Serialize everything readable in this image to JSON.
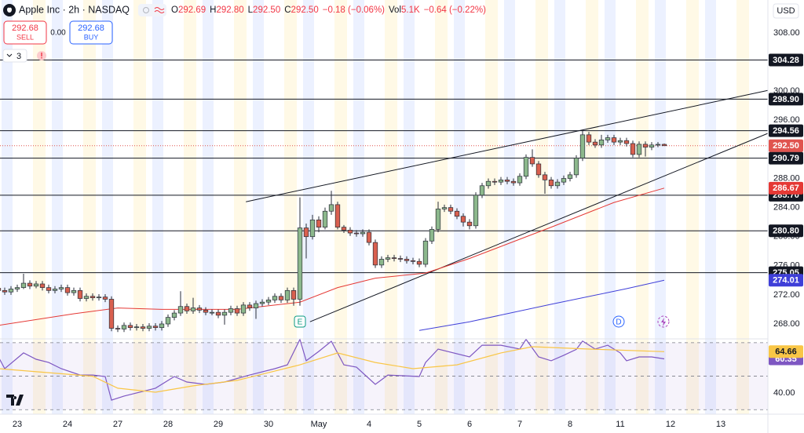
{
  "toolbar": {
    "symbol": "Apple Inc · 2h · NASDAQ",
    "ohlc_labels": [
      "O",
      "H",
      "L",
      "C"
    ],
    "ohlc_values": [
      "292.69",
      "292.80",
      "292.50",
      "292.50"
    ],
    "change": "−0.18 (−0.06%)",
    "volume_label": "Vol",
    "volume": "5.1K",
    "ext_change": "−0.64 (−0.22%)",
    "sell_price": "292.68",
    "sell": "SELL",
    "spread": "0.00",
    "buy_price": "292.68",
    "buy": "BUY",
    "indicators": "3",
    "currency": "USD"
  },
  "chart_data": [
    {
      "type": "candlestick",
      "categories": [
        null,
        null,
        null,
        "23",
        null,
        null,
        null,
        null,
        null,
        null,
        null,
        "24",
        null,
        null,
        null,
        null,
        null,
        null,
        null,
        "27",
        null,
        null,
        null,
        null,
        null,
        null,
        null,
        "28",
        null,
        null,
        null,
        null,
        null,
        null,
        null,
        "29",
        null,
        null,
        null,
        null,
        null,
        null,
        null,
        "30",
        null,
        null,
        null,
        null,
        null,
        null,
        null,
        "May",
        null,
        null,
        null,
        null,
        null,
        null,
        null,
        "4",
        null,
        null,
        null,
        null,
        null,
        null,
        null,
        "5",
        null,
        null,
        null,
        null,
        null,
        null,
        null,
        "6",
        null,
        null,
        null,
        null,
        null,
        null,
        null,
        "7",
        null,
        null,
        null,
        null,
        null,
        null,
        null,
        "8",
        null,
        null,
        null,
        null,
        null,
        null,
        null,
        "11",
        null,
        null,
        null,
        null,
        null,
        null,
        null,
        "12",
        null,
        null,
        null,
        null,
        null,
        null,
        null,
        "13",
        null,
        null,
        null,
        null,
        null,
        null
      ],
      "open": [
        272.9,
        272.6,
        272.4,
        272.8,
        273.0,
        273.6,
        273.2,
        273.5,
        273.0,
        272.6,
        272.8,
        273.0,
        272.3,
        272.6,
        271.5,
        271.8,
        271.6,
        271.7,
        271.4,
        267.4,
        267.3,
        267.8,
        267.5,
        267.6,
        267.4,
        267.7,
        267.5,
        268.0,
        268.9,
        269.5,
        270.4,
        269.8,
        270.2,
        269.9,
        269.6,
        269.6,
        269.2,
        269.6,
        270.1,
        269.5,
        270.6,
        270.2,
        270.8,
        271.0,
        271.3,
        271.8,
        271.3,
        272.6,
        271.4,
        281.2,
        280.0,
        282.3,
        281.3,
        283.5,
        284.4,
        281.3,
        280.9,
        280.5,
        280.4,
        280.6,
        279.2,
        276.1,
        276.9,
        277.1,
        277.0,
        276.9,
        276.7,
        276.6,
        276.2,
        279.4,
        281.0,
        283.8,
        284.0,
        283.5,
        282.8,
        282.0,
        281.5,
        285.7,
        287.0,
        287.6,
        287.5,
        287.8,
        287.6,
        287.4,
        288.3,
        290.9,
        290.0,
        288.5,
        287.8,
        287.0,
        287.5,
        288.0,
        288.5,
        290.8,
        294.0,
        293.0,
        292.6,
        293.3,
        293.6,
        293.0,
        293.2,
        292.8,
        291.3,
        292.7,
        292.3,
        292.6,
        292.69,
        null,
        null,
        null,
        null,
        null,
        null,
        null,
        null,
        null,
        null,
        null,
        null,
        null,
        null,
        null
      ],
      "high": [
        273.2,
        273.0,
        273.2,
        273.4,
        274.9,
        274.0,
        273.9,
        273.9,
        273.4,
        273.2,
        273.4,
        273.4,
        273.0,
        273.0,
        272.2,
        272.2,
        272.1,
        272.1,
        271.8,
        267.8,
        268.2,
        268.2,
        268.0,
        268.0,
        268.1,
        268.1,
        268.4,
        269.3,
        269.9,
        272.5,
        270.8,
        271.6,
        270.6,
        270.3,
        270.0,
        270.0,
        270.0,
        270.5,
        270.5,
        271.0,
        271.0,
        271.2,
        271.4,
        271.7,
        272.2,
        272.2,
        273.0,
        273.0,
        285.4,
        281.8,
        283.0,
        282.8,
        284.0,
        286.3,
        284.8,
        281.6,
        281.3,
        280.9,
        281.0,
        281.0,
        279.6,
        277.3,
        277.5,
        277.5,
        277.4,
        277.3,
        277.1,
        277.0,
        279.8,
        281.4,
        284.8,
        284.4,
        284.4,
        283.9,
        283.2,
        282.4,
        286.1,
        287.4,
        288.0,
        288.0,
        288.2,
        288.2,
        288.0,
        288.7,
        291.3,
        292.0,
        290.4,
        288.9,
        288.2,
        287.9,
        288.4,
        288.9,
        291.2,
        294.6,
        294.4,
        293.4,
        294.0,
        294.0,
        294.0,
        293.6,
        293.6,
        293.2,
        293.1,
        293.1,
        293.0,
        293.0,
        292.8,
        null,
        null,
        null,
        null,
        null,
        null,
        null,
        null,
        null,
        null,
        null,
        null,
        null,
        null,
        null
      ],
      "low": [
        272.2,
        272.0,
        272.0,
        272.4,
        272.8,
        272.8,
        272.9,
        272.6,
        272.2,
        272.2,
        272.4,
        271.9,
        271.9,
        271.1,
        271.1,
        271.2,
        271.2,
        271.0,
        267.0,
        266.9,
        266.9,
        267.1,
        267.1,
        267.0,
        267.0,
        267.1,
        267.1,
        267.6,
        268.5,
        269.1,
        269.4,
        269.4,
        269.5,
        269.2,
        269.2,
        268.8,
        267.9,
        269.2,
        269.1,
        269.1,
        269.8,
        268.7,
        270.4,
        270.6,
        270.9,
        270.9,
        270.9,
        270.5,
        270.5,
        277.0,
        279.6,
        280.6,
        281.0,
        283.0,
        281.0,
        280.5,
        280.1,
        280.0,
        280.0,
        278.8,
        275.7,
        275.7,
        276.5,
        276.6,
        276.5,
        276.3,
        276.2,
        275.8,
        275.8,
        279.0,
        280.6,
        283.4,
        283.1,
        282.4,
        281.4,
        281.0,
        281.1,
        285.3,
        286.6,
        287.1,
        287.1,
        287.2,
        287.0,
        287.0,
        287.9,
        289.6,
        288.1,
        285.9,
        286.6,
        286.6,
        287.1,
        287.6,
        288.1,
        290.4,
        292.6,
        292.2,
        292.2,
        292.9,
        292.6,
        292.6,
        292.4,
        290.9,
        290.9,
        291.0,
        291.9,
        292.3,
        292.5,
        null,
        null,
        null,
        null,
        null,
        null,
        null,
        null,
        null,
        null,
        null,
        null,
        null,
        null,
        null
      ],
      "close": [
        272.6,
        272.4,
        272.8,
        273.0,
        273.6,
        273.2,
        273.5,
        273.0,
        272.6,
        272.8,
        273.0,
        272.3,
        272.6,
        271.5,
        271.8,
        271.6,
        271.7,
        271.4,
        267.4,
        267.3,
        267.8,
        267.5,
        267.6,
        267.4,
        267.7,
        267.5,
        268.0,
        268.9,
        269.5,
        270.4,
        269.8,
        270.2,
        269.9,
        269.6,
        269.6,
        269.2,
        269.6,
        270.1,
        269.5,
        270.6,
        270.2,
        270.8,
        271.0,
        271.3,
        271.8,
        271.3,
        272.6,
        271.4,
        281.2,
        280.0,
        282.3,
        281.3,
        283.5,
        284.4,
        281.3,
        280.9,
        280.5,
        280.4,
        280.6,
        279.2,
        276.1,
        276.9,
        277.1,
        277.0,
        276.9,
        276.7,
        276.6,
        276.2,
        279.4,
        281.0,
        283.8,
        284.0,
        283.5,
        282.8,
        282.0,
        281.5,
        285.7,
        287.0,
        287.6,
        287.5,
        287.8,
        287.6,
        287.4,
        288.3,
        290.9,
        290.0,
        288.5,
        287.8,
        287.0,
        287.5,
        288.0,
        288.5,
        290.8,
        294.0,
        293.0,
        292.6,
        293.3,
        293.6,
        293.0,
        293.2,
        292.8,
        291.3,
        292.7,
        292.3,
        292.6,
        292.69,
        292.5,
        null,
        null,
        null,
        null,
        null,
        null,
        null,
        null,
        null,
        null,
        null,
        null,
        null,
        null,
        null
      ],
      "up_color": "#8cb88c",
      "down_color": "#d9604f",
      "border_color": "#2a2e39",
      "ylim": [
        265.95,
        312.53
      ],
      "yticks": [
        {
          "value": 308,
          "label": "308.00"
        },
        {
          "value": 300,
          "label": "300.00"
        },
        {
          "value": 296,
          "label": "296.00"
        },
        {
          "value": 288,
          "label": "288.00"
        },
        {
          "value": 284,
          "label": "284.00"
        },
        {
          "value": 280,
          "label": "280.00"
        },
        {
          "value": 276,
          "label": "276.00"
        },
        {
          "value": 272,
          "label": "272.00"
        },
        {
          "value": 268,
          "label": "268.00"
        }
      ],
      "grid": false,
      "levels": [
        {
          "value": 304.28,
          "label": "304.28"
        },
        {
          "value": 298.9,
          "label": "298.90"
        },
        {
          "value": 294.56,
          "label": "294.56"
        },
        {
          "value": 290.79,
          "label": "290.79"
        },
        {
          "value": 285.7,
          "label": "285.70"
        },
        {
          "value": 280.8,
          "label": "280.80"
        },
        {
          "value": 275.05,
          "label": "275.05"
        }
      ],
      "level_color": "#131722",
      "last_price": {
        "value": 292.5,
        "label": "292.50"
      },
      "last_price_color": "#e0544f",
      "moving_averages": [
        {
          "color": "#e53935",
          "x": [
            0,
            12,
            19,
            26,
            38,
            48,
            54,
            60,
            68,
            75,
            88,
            98,
            106
          ],
          "values": [
            267.8,
            269.4,
            270.2,
            270.0,
            270.0,
            271.0,
            273.0,
            274.3,
            275.0,
            277.0,
            281.3,
            284.7,
            286.67
          ]
        },
        {
          "color": "#3f3fd8",
          "x": [
            67,
            75,
            88,
            100,
            106
          ],
          "values": [
            267.1,
            268.3,
            270.7,
            272.85,
            274.01
          ]
        }
      ],
      "trendlines": [
        {
          "x": [
            39.4,
            122.5
          ],
          "values": [
            284.8,
            300.1
          ]
        },
        {
          "x": [
            49.6,
            122.5
          ],
          "values": [
            268.3,
            294.2
          ]
        }
      ],
      "events": [
        {
          "label": "E",
          "x": 48,
          "color": "#089981"
        },
        {
          "label": "D",
          "x": 98.75,
          "color": "#2962ff"
        }
      ]
    },
    {
      "type": "line",
      "ylim": [
        28.7,
        72.3
      ],
      "yticks": [
        {
          "value": 40,
          "label": "40.00"
        }
      ],
      "bands": [
        70,
        50,
        30
      ],
      "series": [
        {
          "color": "#7e57c2",
          "x": [
            0,
            1,
            4,
            6,
            8,
            10,
            13,
            15,
            17,
            18,
            20,
            25,
            28,
            30,
            33,
            36,
            40,
            44,
            46,
            48,
            49,
            51,
            53,
            55,
            57,
            60,
            62,
            67,
            68,
            70,
            75,
            77,
            80,
            83,
            84,
            86,
            88,
            90,
            92,
            93,
            95,
            97,
            99,
            100,
            102,
            104,
            106
          ],
          "values": [
            61.5,
            54.5,
            63.9,
            60.1,
            58.2,
            54.5,
            50.7,
            50.7,
            49.8,
            35.7,
            38.1,
            42.8,
            49.8,
            46.5,
            45.1,
            46.5,
            50.7,
            54.5,
            56.8,
            72.0,
            59.2,
            64.8,
            70.9,
            56.8,
            55.4,
            45.1,
            50.7,
            49.8,
            58.2,
            66.2,
            61.5,
            68.5,
            68.5,
            66.2,
            72.0,
            61.5,
            59.2,
            62.5,
            66.0,
            71.0,
            66.2,
            68.5,
            63.9,
            59.2,
            61.5,
            61.5,
            60.35
          ]
        },
        {
          "color": "#f9c646",
          "x": [
            0,
            8,
            15,
            19,
            25,
            31,
            38,
            48,
            54,
            60,
            66,
            73,
            80,
            85,
            94,
            106
          ],
          "values": [
            54.5,
            52.1,
            50.0,
            42.8,
            40.4,
            44.2,
            47.5,
            56.8,
            63.9,
            58.2,
            54.5,
            56.8,
            63.9,
            67.6,
            66.2,
            64.66
          ]
        }
      ]
    }
  ]
}
